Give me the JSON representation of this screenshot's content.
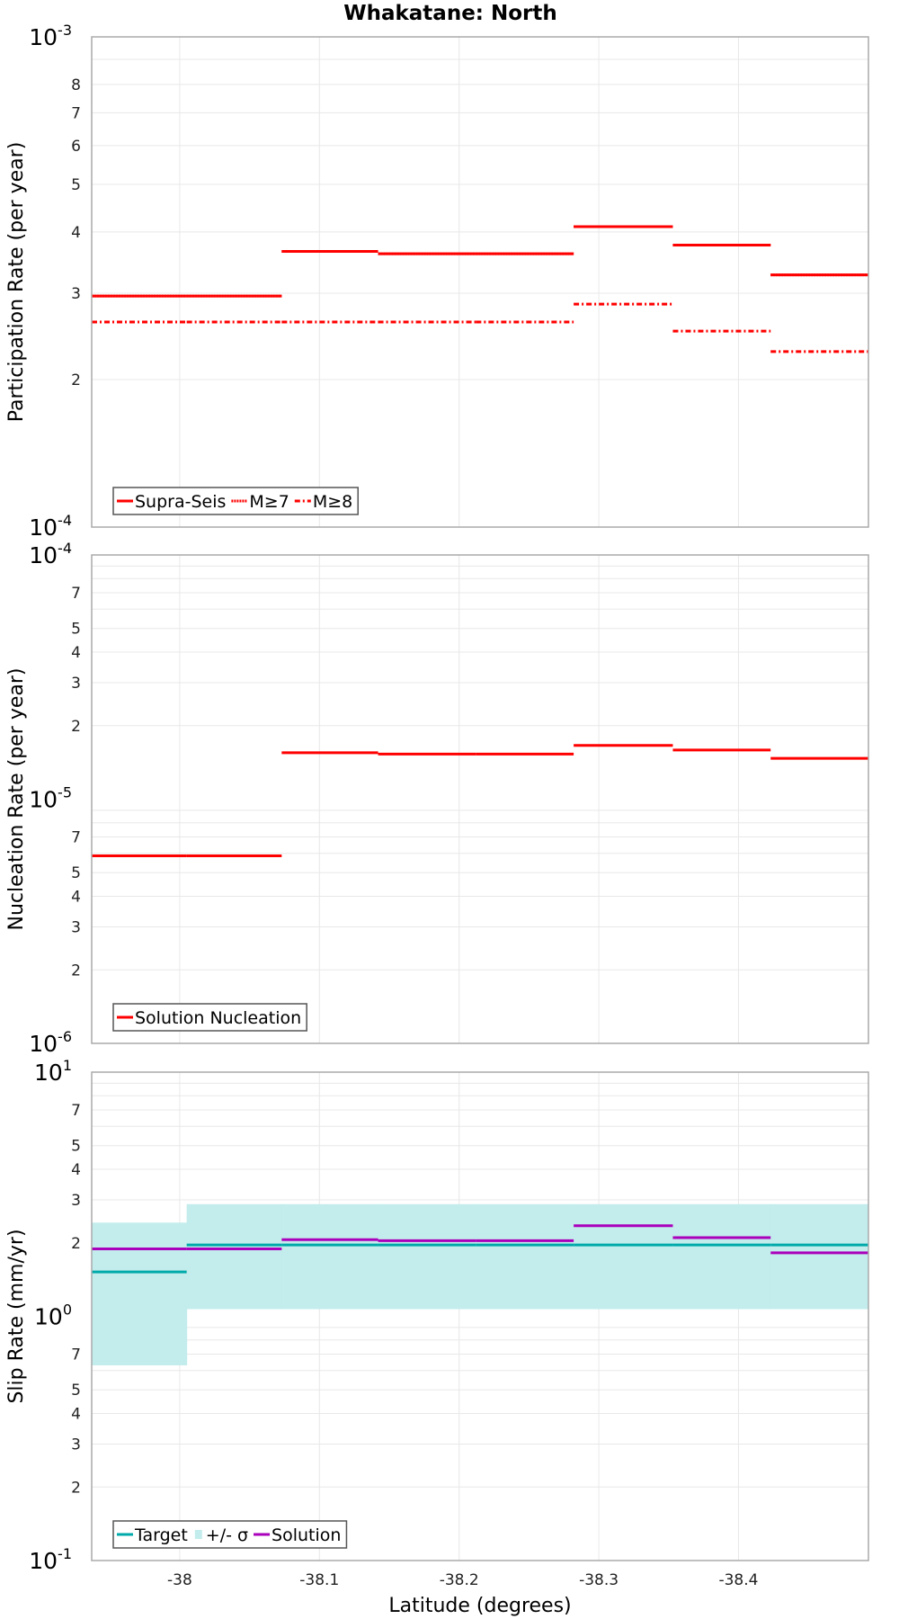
{
  "title": "Whakatane: North",
  "colors": {
    "red": "#ff0000",
    "target": "#00aaaa",
    "band": "#c3ecec",
    "solution": "#aa00bb",
    "grid": "#e8e8e8",
    "frame": "#aaaaaa"
  },
  "xaxis": {
    "label": "Latitude (degrees)",
    "ticks": [
      "-38",
      "-38.1",
      "-38.2",
      "-38.3",
      "-38.4"
    ],
    "tick_values": [
      -38.0,
      -38.1,
      -38.2,
      -38.3,
      -38.4
    ],
    "range": [
      -37.937,
      -38.493
    ]
  },
  "panels": [
    {
      "ylabel": "Participation Rate (per year)",
      "decades": [
        {
          "base": "10",
          "exp": "-3"
        },
        {
          "base": "10",
          "exp": "-4"
        }
      ],
      "minor_ticks": [
        "8",
        "7",
        "6",
        "5",
        "4",
        "3",
        "2"
      ],
      "legend": [
        {
          "label": "Supra-Seis",
          "style": "solid"
        },
        {
          "label": "M≥7",
          "style": "dotted"
        },
        {
          "label": "M≥8",
          "style": "dashdot"
        }
      ]
    },
    {
      "ylabel": "Nucleation Rate (per year)",
      "decades": [
        {
          "base": "10",
          "exp": "-4"
        },
        {
          "base": "10",
          "exp": "-5"
        },
        {
          "base": "10",
          "exp": "-6"
        }
      ],
      "minor_ticks": [
        "7",
        "5",
        "4",
        "3",
        "2"
      ],
      "legend": [
        {
          "label": "Solution Nucleation",
          "style": "solid"
        }
      ]
    },
    {
      "ylabel": "Slip Rate (mm/yr)",
      "decades": [
        {
          "base": "10",
          "exp": "1"
        },
        {
          "base": "10",
          "exp": "0"
        },
        {
          "base": "10",
          "exp": "-1"
        }
      ],
      "minor_ticks": [
        "7",
        "5",
        "4",
        "3",
        "2"
      ],
      "legend": [
        {
          "label": "Target",
          "style": "solid"
        },
        {
          "label": "+/- σ",
          "style": "box"
        },
        {
          "label": "Solution",
          "style": "solid"
        }
      ]
    }
  ],
  "chart_data": [
    {
      "type": "line",
      "title": "Whakatane: North",
      "xlabel": "Latitude (degrees)",
      "ylabel": "Participation Rate (per year)",
      "yscale": "log",
      "ylim": [
        0.0001,
        0.001
      ],
      "x_segments": [
        [
          -37.937,
          -38.005
        ],
        [
          -38.005,
          -38.073
        ],
        [
          -38.073,
          -38.142
        ],
        [
          -38.142,
          -38.212
        ],
        [
          -38.212,
          -38.282
        ],
        [
          -38.282,
          -38.353
        ],
        [
          -38.353,
          -38.423
        ],
        [
          -38.423,
          -38.493
        ]
      ],
      "series": [
        {
          "name": "Supra-Seis",
          "values": [
            0.000296,
            0.000296,
            0.000365,
            0.000361,
            0.000361,
            0.00041,
            0.000376,
            0.000327
          ]
        },
        {
          "name": "M≥7",
          "values": [
            0.000296,
            0.000296,
            0.000365,
            0.000361,
            0.000361,
            0.00041,
            0.000376,
            0.000327
          ]
        },
        {
          "name": "M≥8",
          "values": [
            0.000262,
            0.000262,
            0.000262,
            0.000262,
            0.000262,
            0.000285,
            0.000251,
            0.000228
          ]
        }
      ],
      "legend_position": "lower left"
    },
    {
      "type": "line",
      "xlabel": "Latitude (degrees)",
      "ylabel": "Nucleation Rate (per year)",
      "yscale": "log",
      "ylim": [
        1e-06,
        0.0001
      ],
      "x_segments": [
        [
          -37.937,
          -38.005
        ],
        [
          -38.005,
          -38.073
        ],
        [
          -38.073,
          -38.142
        ],
        [
          -38.142,
          -38.212
        ],
        [
          -38.212,
          -38.282
        ],
        [
          -38.282,
          -38.353
        ],
        [
          -38.353,
          -38.423
        ],
        [
          -38.423,
          -38.493
        ]
      ],
      "series": [
        {
          "name": "Solution Nucleation",
          "values": [
            5.86e-06,
            5.86e-06,
            1.55e-05,
            1.53e-05,
            1.53e-05,
            1.66e-05,
            1.59e-05,
            1.47e-05
          ]
        }
      ],
      "legend_position": "lower left"
    },
    {
      "type": "line",
      "xlabel": "Latitude (degrees)",
      "ylabel": "Slip Rate (mm/yr)",
      "yscale": "log",
      "ylim": [
        0.1,
        10
      ],
      "x_segments": [
        [
          -37.937,
          -38.005
        ],
        [
          -38.005,
          -38.073
        ],
        [
          -38.073,
          -38.142
        ],
        [
          -38.142,
          -38.212
        ],
        [
          -38.212,
          -38.282
        ],
        [
          -38.282,
          -38.353
        ],
        [
          -38.353,
          -38.423
        ],
        [
          -38.423,
          -38.493
        ]
      ],
      "series": [
        {
          "name": "Target",
          "values": [
            1.52,
            1.96,
            1.96,
            1.96,
            1.96,
            1.96,
            1.96,
            1.96
          ]
        },
        {
          "name": "+/- σ upper",
          "values": [
            2.42,
            2.88,
            2.88,
            2.88,
            2.88,
            2.88,
            2.88,
            2.88
          ]
        },
        {
          "name": "+/- σ lower",
          "values": [
            0.63,
            1.07,
            1.07,
            1.07,
            1.07,
            1.07,
            1.07,
            1.07
          ]
        },
        {
          "name": "Solution",
          "values": [
            1.89,
            1.89,
            2.06,
            2.04,
            2.04,
            2.35,
            2.1,
            1.82
          ]
        }
      ],
      "legend_position": "lower left"
    }
  ]
}
